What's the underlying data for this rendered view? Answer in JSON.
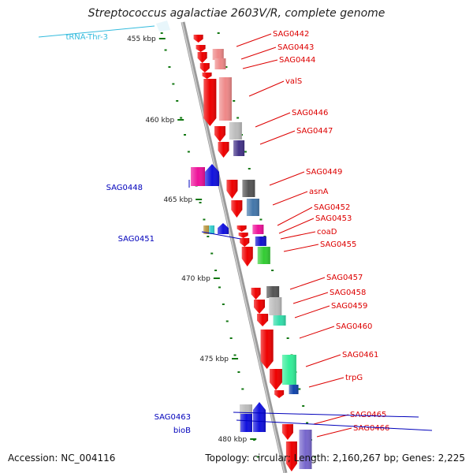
{
  "title": "Streptococcus agalactiae 2603V/R, complete genome",
  "footer": {
    "accession": "Accession: NC_004116",
    "stats": "Topology: circular; Length: 2,160,267 bp; Genes: 2,225"
  },
  "ticks": [
    {
      "label": "455 kbp"
    },
    {
      "label": "460 kbp"
    },
    {
      "label": "465 kbp"
    },
    {
      "label": "470 kbp"
    },
    {
      "label": "475 kbp"
    },
    {
      "label": "480 kbp"
    }
  ],
  "colors": {
    "forward_label": "#dd0000",
    "reverse_label": "#0000bb",
    "trna_label": "#33bbdd",
    "backbone": "#888888",
    "tick": "#117711"
  },
  "forward_genes": [
    {
      "name": "SAG0442"
    },
    {
      "name": "SAG0443"
    },
    {
      "name": "SAG0444"
    },
    {
      "name": "valS"
    },
    {
      "name": "SAG0446"
    },
    {
      "name": "SAG0447"
    },
    {
      "name": "SAG0449"
    },
    {
      "name": "asnA"
    },
    {
      "name": "SAG0452"
    },
    {
      "name": "SAG0453"
    },
    {
      "name": "coaD"
    },
    {
      "name": "SAG0455"
    },
    {
      "name": "SAG0457"
    },
    {
      "name": "SAG0458"
    },
    {
      "name": "SAG0459"
    },
    {
      "name": "SAG0460"
    },
    {
      "name": "SAG0461"
    },
    {
      "name": "trpG"
    },
    {
      "name": "SAG0465"
    },
    {
      "name": "SAG0466"
    }
  ],
  "reverse_genes": [
    {
      "name": "tRNA-Thr-3",
      "kind": "trna"
    },
    {
      "name": "SAG0448",
      "kind": "cds"
    },
    {
      "name": "SAG0451",
      "kind": "cds"
    },
    {
      "name": "SAG0463",
      "kind": "cds"
    },
    {
      "name": "bioB",
      "kind": "cds"
    }
  ]
}
